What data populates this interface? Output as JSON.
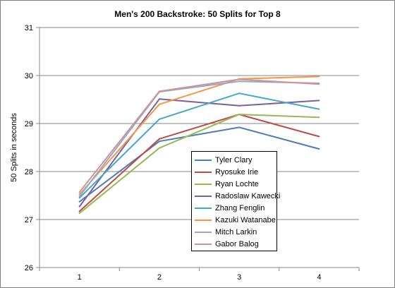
{
  "chart_data": {
    "type": "line",
    "title": "Men's 200 Backstroke: 50 Splits for Top 8",
    "xlabel": "",
    "ylabel": "50 Splits in seconds",
    "categories": [
      "1",
      "2",
      "3",
      "4"
    ],
    "ylim": [
      26,
      31
    ],
    "yticks": [
      "26",
      "27",
      "28",
      "29",
      "30",
      "31"
    ],
    "grid": true,
    "legend_position": "center-right",
    "series": [
      {
        "name": "Tyler Clary",
        "color": "#4a7ebb",
        "values": [
          27.37,
          28.63,
          28.92,
          28.47
        ]
      },
      {
        "name": "Ryosuke Irie",
        "color": "#be4b48",
        "values": [
          27.17,
          28.68,
          29.19,
          28.73
        ]
      },
      {
        "name": "Ryan Lochte",
        "color": "#98b954",
        "values": [
          27.13,
          28.49,
          29.19,
          29.13
        ]
      },
      {
        "name": "Radoslaw Kawecki",
        "color": "#7d60a0",
        "values": [
          27.27,
          29.51,
          29.37,
          29.48
        ]
      },
      {
        "name": "Zhang Fenglin",
        "color": "#46aac5",
        "values": [
          27.45,
          29.09,
          29.63,
          29.3
        ]
      },
      {
        "name": "Kazuki Watanabe",
        "color": "#f79646",
        "values": [
          27.52,
          29.4,
          29.93,
          29.98
        ]
      },
      {
        "name": "Mitch Larkin",
        "color": "#93a9cf",
        "values": [
          27.48,
          29.66,
          29.88,
          29.84
        ]
      },
      {
        "name": "Gabor Balog",
        "color": "#d19392",
        "values": [
          27.57,
          29.67,
          29.92,
          29.82
        ]
      }
    ]
  }
}
